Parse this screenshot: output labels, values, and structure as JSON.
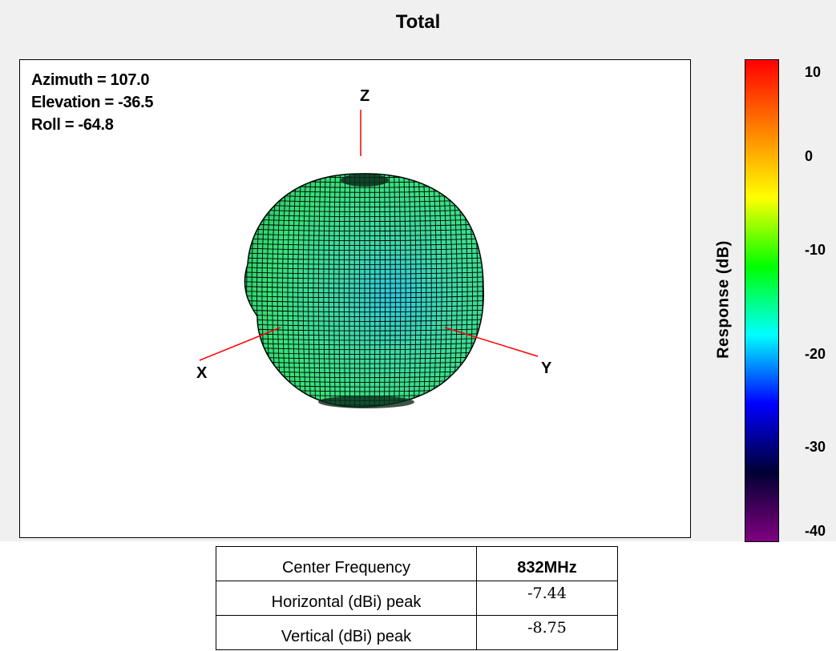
{
  "window": {
    "title": "Total"
  },
  "plot": {
    "orientation": {
      "azimuth": "Azimuth = 107.0",
      "elevation": "Elevation = -36.5",
      "roll": "Roll = -64.8"
    },
    "axes": {
      "x": "X",
      "y": "Y",
      "z": "Z"
    },
    "axis_color": "#ff0000",
    "surface_color": "#33e6a0",
    "mesh_color": "#000000"
  },
  "colorbar": {
    "title": "Response  (dB)",
    "ticks": [
      "10",
      "0",
      "-10",
      "-20",
      "-30",
      "-40"
    ],
    "colors_top_to_bottom": [
      "#ff0000",
      "#ff8000",
      "#ffff00",
      "#00ff00",
      "#00ffff",
      "#0000ff",
      "#000033",
      "#800080"
    ]
  },
  "info_table": {
    "rows": [
      {
        "label": "Center Frequency",
        "value": "832MHz"
      },
      {
        "label": "Horizontal (dBi) peak",
        "value": "-7.44"
      },
      {
        "label": "Vertical  (dBi)  peak",
        "value": "-8.75"
      }
    ]
  }
}
